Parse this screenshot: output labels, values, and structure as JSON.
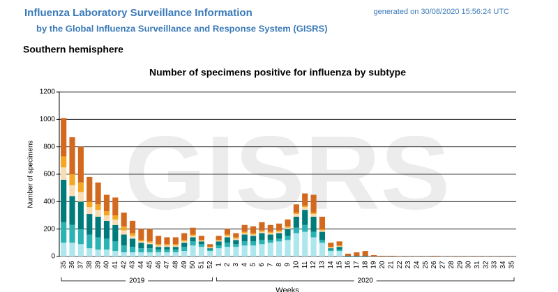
{
  "header": {
    "title": "Influenza Laboratory Surveillance Information",
    "subtitle": "by the Global Influenza Surveillance and Response System (GISRS)",
    "generated": "generated on 30/08/2020 15:56:24 UTC",
    "region": "Southern hemisphere"
  },
  "chart_data": {
    "type": "bar",
    "stacked": true,
    "title": "Number of specimens positive for influenza by subtype",
    "watermark": "GISRS",
    "y_label": "Number of specimens",
    "x_label": "Weeks",
    "groups": [
      "2019",
      "2020"
    ],
    "categories": [
      "35",
      "36",
      "37",
      "38",
      "39",
      "40",
      "41",
      "42",
      "43",
      "44",
      "45",
      "46",
      "47",
      "48",
      "49",
      "50",
      "51",
      "52",
      "1",
      "2",
      "3",
      "4",
      "5",
      "6",
      "7",
      "8",
      "9",
      "10",
      "11",
      "12",
      "13",
      "14",
      "15",
      "16",
      "17",
      "18",
      "19",
      "20",
      "21",
      "22",
      "23",
      "24",
      "25",
      "26",
      "27",
      "28",
      "29",
      "30",
      "31",
      "32",
      "33",
      "34",
      "35"
    ],
    "ylim": [
      0,
      1200
    ],
    "yticks": [
      0,
      200,
      400,
      600,
      800,
      1000,
      1200
    ],
    "grid": true,
    "series": [
      {
        "color": "#aee6ee",
        "values": [
          100,
          100,
          90,
          60,
          50,
          50,
          40,
          30,
          30,
          30,
          30,
          30,
          30,
          30,
          40,
          80,
          70,
          40,
          60,
          70,
          70,
          80,
          80,
          90,
          100,
          110,
          120,
          170,
          180,
          140,
          100,
          40,
          40,
          0,
          0,
          0,
          0,
          0,
          0,
          0,
          0,
          0,
          0,
          0,
          0,
          0,
          0,
          0,
          0,
          0,
          0,
          0,
          0
        ]
      },
      {
        "color": "#2bb3b3",
        "values": [
          150,
          130,
          110,
          100,
          90,
          80,
          70,
          50,
          40,
          30,
          30,
          20,
          20,
          20,
          30,
          30,
          20,
          10,
          20,
          30,
          20,
          30,
          30,
          30,
          20,
          20,
          30,
          40,
          50,
          40,
          20,
          10,
          10,
          0,
          0,
          0,
          0,
          0,
          0,
          0,
          0,
          0,
          0,
          0,
          0,
          0,
          0,
          0,
          0,
          0,
          0,
          0,
          0
        ]
      },
      {
        "color": "#007b7b",
        "values": [
          310,
          210,
          200,
          150,
          150,
          130,
          120,
          80,
          60,
          40,
          30,
          20,
          20,
          20,
          30,
          30,
          20,
          10,
          30,
          40,
          30,
          50,
          40,
          50,
          40,
          40,
          50,
          80,
          110,
          110,
          60,
          10,
          20,
          5,
          5,
          5,
          0,
          0,
          0,
          0,
          0,
          0,
          0,
          0,
          0,
          0,
          0,
          0,
          0,
          0,
          0,
          0,
          0
        ]
      },
      {
        "color": "#f7dcb4",
        "values": [
          90,
          80,
          70,
          50,
          50,
          40,
          40,
          30,
          20,
          10,
          10,
          10,
          10,
          10,
          10,
          10,
          5,
          5,
          5,
          10,
          10,
          10,
          10,
          10,
          10,
          10,
          10,
          20,
          20,
          20,
          10,
          5,
          5,
          0,
          0,
          0,
          0,
          0,
          0,
          0,
          0,
          0,
          0,
          0,
          0,
          0,
          0,
          0,
          0,
          0,
          0,
          0,
          0
        ]
      },
      {
        "color": "#f5a623",
        "values": [
          80,
          80,
          70,
          40,
          40,
          30,
          30,
          30,
          20,
          10,
          10,
          10,
          10,
          10,
          10,
          10,
          5,
          5,
          5,
          10,
          10,
          10,
          10,
          10,
          10,
          10,
          10,
          10,
          10,
          10,
          10,
          5,
          5,
          0,
          0,
          0,
          0,
          0,
          0,
          0,
          0,
          0,
          0,
          0,
          0,
          0,
          0,
          0,
          0,
          0,
          0,
          0,
          0
        ]
      },
      {
        "color": "#d2691e",
        "values": [
          280,
          270,
          260,
          180,
          160,
          120,
          130,
          100,
          90,
          80,
          90,
          60,
          50,
          50,
          50,
          50,
          30,
          20,
          30,
          40,
          30,
          50,
          50,
          60,
          50,
          50,
          50,
          60,
          90,
          130,
          90,
          30,
          30,
          15,
          25,
          35,
          10,
          5,
          5,
          3,
          2,
          2,
          3,
          4,
          2,
          2,
          3,
          2,
          3,
          2,
          2,
          1,
          1
        ]
      }
    ]
  }
}
